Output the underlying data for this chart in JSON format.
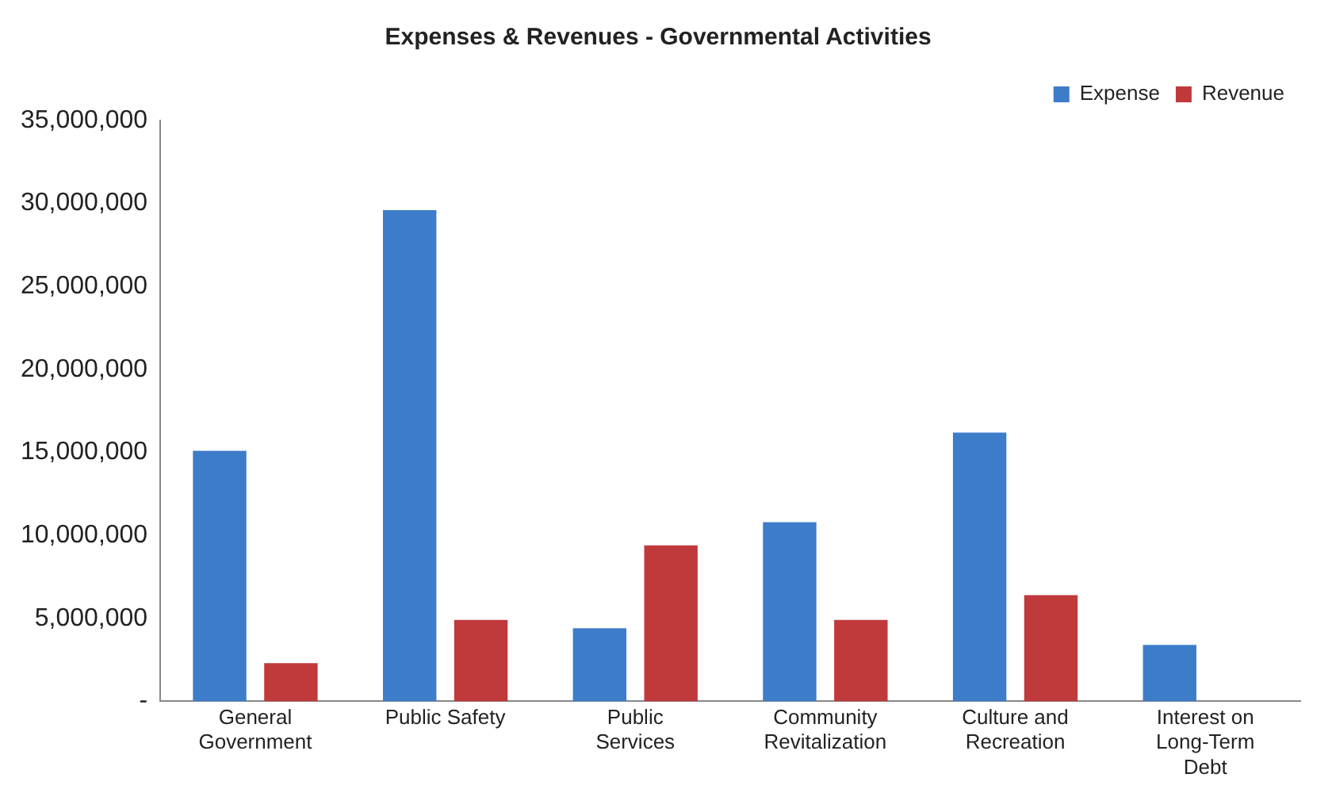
{
  "chart_data": {
    "type": "bar",
    "title": "Expenses & Revenues - Governmental Activities",
    "categories": [
      "General Government",
      "Public Safety",
      "Public Services",
      "Community Revitalization",
      "Culture and Recreation",
      "Interest on Long-Term Debt"
    ],
    "series": [
      {
        "name": "Expense",
        "color": "#3d7cc9",
        "values": [
          15100000,
          29600000,
          4400000,
          10800000,
          16200000,
          3400000
        ]
      },
      {
        "name": "Revenue",
        "color": "#c0393b",
        "values": [
          2300000,
          4900000,
          9400000,
          4900000,
          6400000,
          0
        ]
      }
    ],
    "ylim": [
      0,
      35000000
    ],
    "yticks": [
      {
        "value": 0,
        "label": "-"
      },
      {
        "value": 5000000,
        "label": "5,000,000"
      },
      {
        "value": 10000000,
        "label": "10,000,000"
      },
      {
        "value": 15000000,
        "label": "15,000,000"
      },
      {
        "value": 20000000,
        "label": "20,000,000"
      },
      {
        "value": 25000000,
        "label": "25,000,000"
      },
      {
        "value": 30000000,
        "label": "30,000,000"
      },
      {
        "value": 35000000,
        "label": "35,000,000"
      }
    ],
    "grid": false,
    "legend": "top right"
  }
}
